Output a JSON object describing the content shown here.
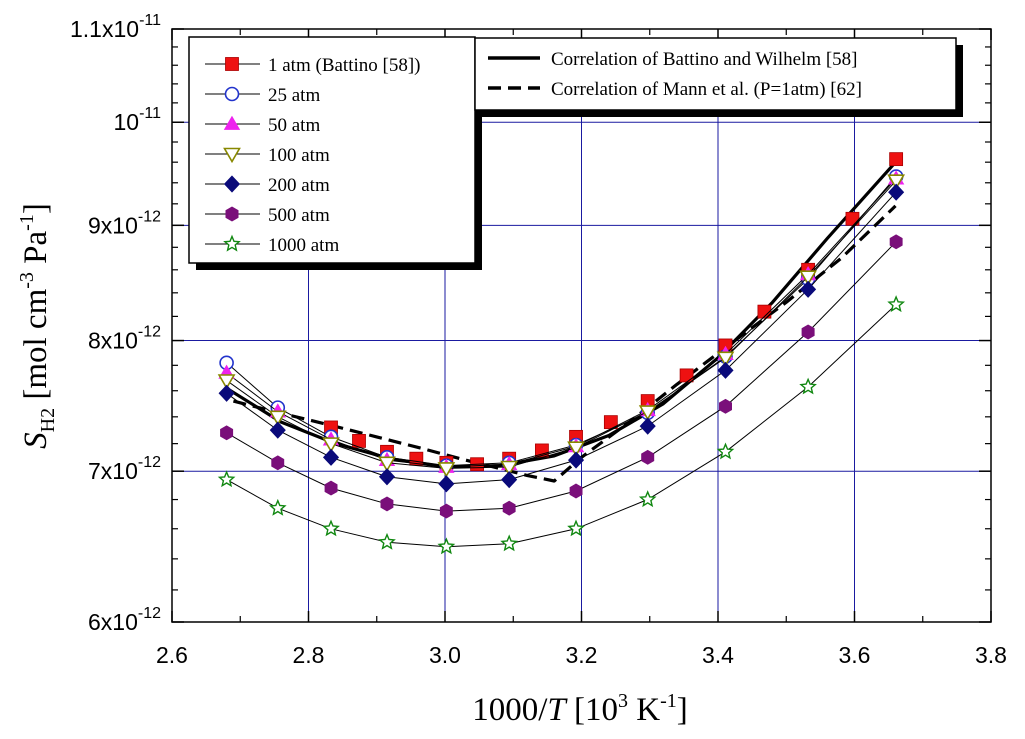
{
  "chart_data": {
    "type": "scatter",
    "xlabel": {
      "pre": "1000/",
      "var": "T",
      "mid": " [10",
      "sup1": "3",
      "post": " K",
      "sup2": "-1",
      "end": "]"
    },
    "ylabel": {
      "var": "S",
      "sub": "H2",
      "pre": " [mol cm",
      "sup1": "-3",
      "mid": " Pa",
      "sup2": "-1",
      "end": "]"
    },
    "xlim": [
      2.6,
      3.8
    ],
    "ylim": [
      6e-12,
      1.1e-11
    ],
    "y_scale": "log",
    "grid": true,
    "x_ticks": [
      {
        "value": 2.6,
        "label": "2.6"
      },
      {
        "value": 2.8,
        "label": "2.8"
      },
      {
        "value": 3.0,
        "label": "3.0"
      },
      {
        "value": 3.2,
        "label": "3.2"
      },
      {
        "value": 3.4,
        "label": "3.4"
      },
      {
        "value": 3.6,
        "label": "3.6"
      },
      {
        "value": 3.8,
        "label": "3.8"
      }
    ],
    "y_ticks": [
      {
        "value": 6e-12,
        "mant": "6x10",
        "exp": "-12"
      },
      {
        "value": 7e-12,
        "mant": "7x10",
        "exp": "-12"
      },
      {
        "value": 8e-12,
        "mant": "8x10",
        "exp": "-12"
      },
      {
        "value": 9e-12,
        "mant": "9x10",
        "exp": "-12"
      },
      {
        "value": 1e-11,
        "mant": "10",
        "exp": "-11"
      },
      {
        "value": 1.1e-11,
        "mant": "1.1x10",
        "exp": "-11"
      }
    ],
    "series": [
      {
        "name": "1 atm (Battino [58])",
        "marker": "square",
        "color": "#ee1111",
        "x": [
          2.833,
          2.874,
          2.915,
          2.958,
          3.002,
          3.047,
          3.094,
          3.142,
          3.192,
          3.243,
          3.297,
          3.354,
          3.411,
          3.468,
          3.532,
          3.597,
          3.661
        ],
        "y": [
          7.32e-12,
          7.22e-12,
          7.14e-12,
          7.09e-12,
          7.06e-12,
          7.05e-12,
          7.09e-12,
          7.15e-12,
          7.25e-12,
          7.36e-12,
          7.52e-12,
          7.72e-12,
          7.96e-12,
          8.24e-12,
          8.6e-12,
          9.06e-12,
          9.63e-12
        ]
      },
      {
        "name": "25 atm",
        "marker": "circle",
        "color": "#2233cc",
        "x": [
          2.68,
          2.755,
          2.833,
          2.915,
          3.002,
          3.094,
          3.192,
          3.297,
          3.411,
          3.532,
          3.661
        ],
        "y": [
          7.82e-12,
          7.47e-12,
          7.25e-12,
          7.1e-12,
          7.04e-12,
          7.06e-12,
          7.19e-12,
          7.43e-12,
          7.87e-12,
          8.52e-12,
          9.46e-12
        ]
      },
      {
        "name": "50 atm",
        "marker": "triangle-up",
        "color": "#ee22ee",
        "x": [
          2.68,
          2.755,
          2.833,
          2.915,
          3.002,
          3.094,
          3.192,
          3.297,
          3.411,
          3.532,
          3.661
        ],
        "y": [
          7.74e-12,
          7.44e-12,
          7.23e-12,
          7.08e-12,
          7.03e-12,
          7.05e-12,
          7.18e-12,
          7.45e-12,
          7.89e-12,
          8.56e-12,
          9.44e-12
        ]
      },
      {
        "name": "100 atm",
        "marker": "triangle-down",
        "color": "#888800",
        "x": [
          2.68,
          2.755,
          2.833,
          2.915,
          3.002,
          3.094,
          3.192,
          3.297,
          3.411,
          3.532,
          3.661
        ],
        "y": [
          7.68e-12,
          7.4e-12,
          7.2e-12,
          7.06e-12,
          7.02e-12,
          7.03e-12,
          7.17e-12,
          7.44e-12,
          7.86e-12,
          8.54e-12,
          9.42e-12
        ]
      },
      {
        "name": "200 atm",
        "marker": "diamond",
        "color": "#0a0a7a",
        "x": [
          2.68,
          2.755,
          2.833,
          2.915,
          3.002,
          3.094,
          3.192,
          3.297,
          3.411,
          3.532,
          3.661
        ],
        "y": [
          7.58e-12,
          7.3e-12,
          7.1e-12,
          6.96e-12,
          6.91e-12,
          6.94e-12,
          7.08e-12,
          7.33e-12,
          7.76e-12,
          8.43e-12,
          9.31e-12
        ]
      },
      {
        "name": "500 atm",
        "marker": "hexagon",
        "color": "#7a0f7a",
        "x": [
          2.68,
          2.755,
          2.833,
          2.915,
          3.002,
          3.094,
          3.192,
          3.297,
          3.411,
          3.532,
          3.661
        ],
        "y": [
          7.28e-12,
          7.06e-12,
          6.88e-12,
          6.77e-12,
          6.72e-12,
          6.74e-12,
          6.86e-12,
          7.1e-12,
          7.48e-12,
          8.07e-12,
          8.85e-12
        ]
      },
      {
        "name": "1000 atm",
        "marker": "star",
        "color": "#118811",
        "x": [
          2.68,
          2.755,
          2.833,
          2.915,
          3.002,
          3.094,
          3.192,
          3.297,
          3.411,
          3.532,
          3.661
        ],
        "y": [
          6.94e-12,
          6.74e-12,
          6.6e-12,
          6.51e-12,
          6.48e-12,
          6.5e-12,
          6.6e-12,
          6.8e-12,
          7.14e-12,
          7.63e-12,
          8.3e-12
        ]
      }
    ],
    "curves": [
      {
        "name": "Correlation of Battino and Wilhelm  [58]",
        "style": "solid",
        "x": [
          2.68,
          2.76,
          2.84,
          2.92,
          3.0,
          3.08,
          3.16,
          3.24,
          3.32,
          3.4,
          3.48,
          3.56,
          3.66
        ],
        "y": [
          7.62e-12,
          7.36e-12,
          7.2e-12,
          7.09e-12,
          7.03e-12,
          7.04e-12,
          7.11e-12,
          7.26e-12,
          7.5e-12,
          7.86e-12,
          8.32e-12,
          8.88e-12,
          9.6e-12
        ]
      },
      {
        "name": "Correlation of Mann et al. (P=1atm) [62]",
        "style": "dashed",
        "x": [
          2.69,
          2.75,
          2.83,
          2.9,
          2.97,
          3.03,
          3.08,
          3.12,
          3.16,
          3.2,
          3.27,
          3.34,
          3.42,
          3.5,
          3.58,
          3.66
        ],
        "y": [
          7.52e-12,
          7.44e-12,
          7.34e-12,
          7.25e-12,
          7.16e-12,
          7.08e-12,
          7.02e-12,
          6.97e-12,
          6.93e-12,
          7.1e-12,
          7.36e-12,
          7.65e-12,
          7.98e-12,
          8.32e-12,
          8.7e-12,
          9.18e-12
        ]
      }
    ],
    "legend_markers": {
      "labels": [
        "1 atm (Battino [58])",
        "25 atm",
        "50 atm",
        "100 atm",
        "200 atm",
        "500 atm",
        "1000 atm"
      ]
    },
    "legend_lines": {
      "labels": [
        "Correlation of Battino and Wilhelm  [58]",
        "Correlation of Mann et al. (P=1atm) [62]"
      ]
    }
  }
}
